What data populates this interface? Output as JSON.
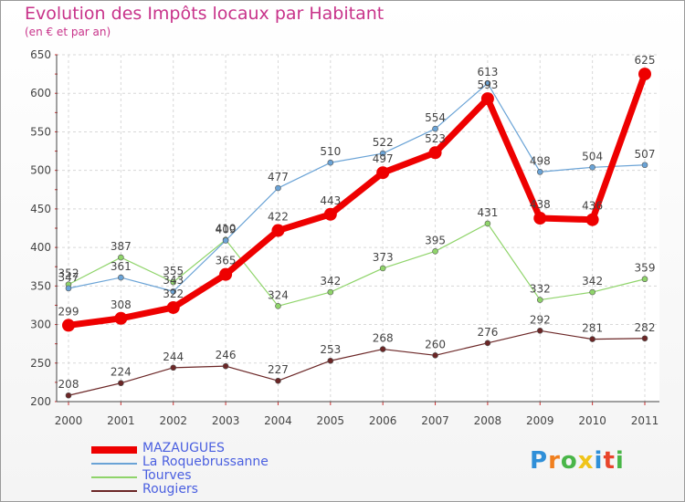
{
  "header": {
    "title": "Evolution des Impôts locaux par Habitant",
    "subtitle": "(en € et par an)"
  },
  "brand": {
    "letters": [
      {
        "ch": "P",
        "color": "#2f8fd8"
      },
      {
        "ch": "r",
        "color": "#f07f1e"
      },
      {
        "ch": "o",
        "color": "#49b648"
      },
      {
        "ch": "x",
        "color": "#f0c419"
      },
      {
        "ch": "i",
        "color": "#2f8fd8"
      },
      {
        "ch": "t",
        "color": "#e8452c"
      },
      {
        "ch": "i",
        "color": "#49b648"
      }
    ]
  },
  "chart_data": {
    "type": "line",
    "title": "Evolution des Impôts locaux par Habitant",
    "subtitle": "(en € et par an)",
    "x": [
      "2000",
      "2001",
      "2002",
      "2003",
      "2004",
      "2005",
      "2006",
      "2007",
      "2008",
      "2009",
      "2010",
      "2011"
    ],
    "ylim": [
      200,
      650
    ],
    "yticks": [
      200,
      250,
      300,
      350,
      400,
      450,
      500,
      550,
      600,
      650
    ],
    "grid": true,
    "legend_position": "bottom-left",
    "series": [
      {
        "name": "MAZAUGUES",
        "color": "#ee0000",
        "values": [
          299,
          308,
          322,
          365,
          422,
          443,
          497,
          523,
          593,
          438,
          436,
          625
        ]
      },
      {
        "name": "La Roquebrussanne",
        "color": "#6aa3d6",
        "values": [
          347,
          361,
          343,
          409,
          477,
          510,
          522,
          554,
          613,
          498,
          504,
          507
        ]
      },
      {
        "name": "Tourves",
        "color": "#8fd46a",
        "values": [
          352,
          387,
          355,
          410,
          324,
          342,
          373,
          395,
          431,
          332,
          342,
          359
        ]
      },
      {
        "name": "Rougiers",
        "color": "#6b2626",
        "values": [
          208,
          224,
          244,
          246,
          227,
          253,
          268,
          260,
          276,
          292,
          281,
          282
        ]
      }
    ]
  }
}
